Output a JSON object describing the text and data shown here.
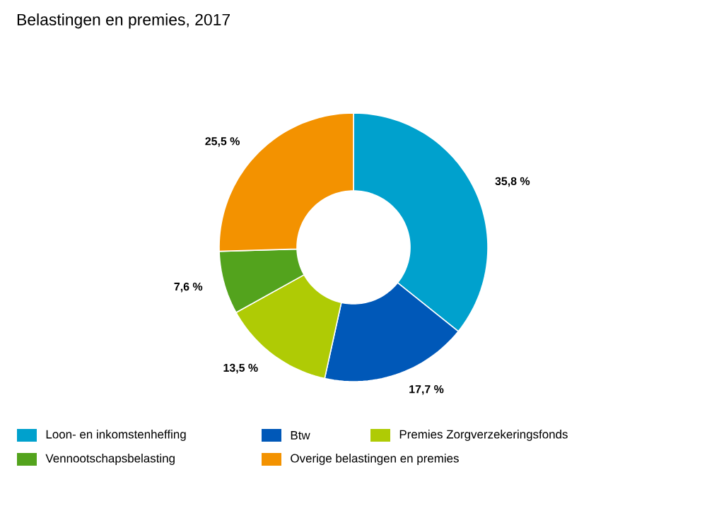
{
  "chart_data": {
    "type": "donut",
    "title": "Belastingen en premies, 2017",
    "categories": [
      "Loon- en inkomstenheffing",
      "Btw",
      "Premies Zorgverzekeringsfonds",
      "Vennootschapsbelasting",
      "Overige belastingen en premies"
    ],
    "values": [
      35.8,
      17.7,
      13.5,
      7.6,
      25.5
    ],
    "value_labels": [
      "35,8 %",
      "17,7 %",
      "13,5 %",
      "7,6 %",
      "25,5 %"
    ],
    "colors": [
      "#00a1cd",
      "#0058b8",
      "#afcb05",
      "#53a31d",
      "#f39200"
    ],
    "legend": "bottom"
  }
}
